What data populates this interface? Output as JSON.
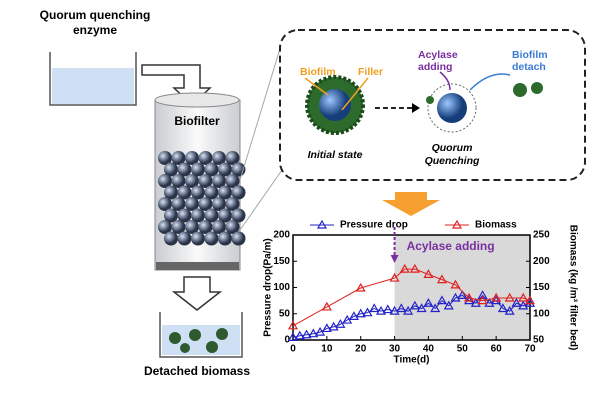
{
  "left": {
    "enzyme": [
      "Quorum quenching",
      "enzyme"
    ],
    "biofilter": "Biofilter",
    "detached": "Detached biomass"
  },
  "box": {
    "biofilm": "Biofilm",
    "filler": "Filler",
    "acylase": [
      "Acylase",
      "adding"
    ],
    "detach": [
      "Biofilm",
      "detach"
    ],
    "initial": "Initial state",
    "quenching": [
      "Quorum",
      "Quenching"
    ]
  },
  "chart_data": {
    "type": "line",
    "xlabel": "Time(d)",
    "ylabel": "Pressure drop(Pa/m)",
    "y2label": "Biomass (kg /m³ filter bed)",
    "annotation": {
      "text": "Acylase adding",
      "x": 30
    },
    "xlim": [
      0,
      70
    ],
    "xticks": [
      0,
      10,
      20,
      30,
      40,
      50,
      60,
      70
    ],
    "ylim": [
      0,
      200
    ],
    "yticks": [
      0,
      50,
      100,
      150,
      200
    ],
    "y2lim": [
      50,
      250
    ],
    "y2ticks": [
      50,
      100,
      150,
      200,
      250
    ],
    "series": [
      {
        "name": "Pressure drop",
        "color": "#2323c8",
        "x": [
          0,
          2,
          4,
          6,
          8,
          10,
          12,
          14,
          16,
          18,
          20,
          22,
          24,
          26,
          28,
          30,
          32,
          34,
          36,
          38,
          40,
          42,
          44,
          46,
          48,
          50,
          52,
          54,
          56,
          58,
          60,
          62,
          64,
          66,
          68,
          70
        ],
        "values": [
          5,
          8,
          10,
          12,
          15,
          22,
          25,
          30,
          38,
          45,
          50,
          52,
          60,
          55,
          58,
          55,
          60,
          55,
          65,
          60,
          70,
          60,
          75,
          65,
          80,
          85,
          75,
          70,
          85,
          70,
          75,
          60,
          55,
          70,
          65,
          70
        ]
      },
      {
        "name": "Biomass",
        "color": "#e02020",
        "axis": "y2",
        "x": [
          0,
          10,
          20,
          30,
          33,
          36,
          40,
          44,
          48,
          52,
          56,
          60,
          64,
          68,
          70
        ],
        "values": [
          77,
          113,
          149,
          168,
          185,
          185,
          175,
          165,
          155,
          130,
          125,
          130,
          130,
          130,
          125
        ]
      }
    ]
  }
}
